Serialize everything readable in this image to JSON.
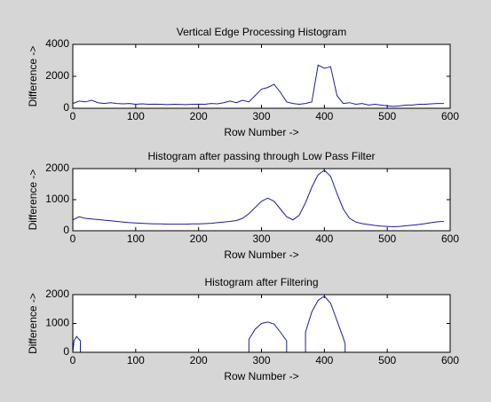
{
  "chart_data": [
    {
      "type": "line",
      "title": "Vertical Edge Processing Histogram",
      "xlabel": "Row Number ->",
      "ylabel": "Difference ->",
      "color": "#1c1ca0",
      "x": [
        0,
        10,
        20,
        30,
        40,
        50,
        60,
        70,
        80,
        90,
        100,
        110,
        120,
        130,
        140,
        150,
        160,
        170,
        180,
        190,
        200,
        210,
        220,
        230,
        240,
        250,
        260,
        270,
        280,
        290,
        300,
        310,
        320,
        330,
        340,
        350,
        360,
        370,
        380,
        390,
        400,
        410,
        420,
        430,
        440,
        450,
        460,
        470,
        480,
        490,
        500,
        510,
        520,
        530,
        540,
        550,
        560,
        570,
        580,
        590
      ],
      "values": [
        300,
        450,
        400,
        500,
        350,
        300,
        350,
        300,
        280,
        300,
        250,
        280,
        250,
        260,
        250,
        230,
        250,
        240,
        230,
        250,
        260,
        250,
        300,
        280,
        350,
        450,
        350,
        500,
        400,
        800,
        1200,
        1300,
        1500,
        1000,
        400,
        300,
        250,
        300,
        400,
        2700,
        2500,
        2600,
        800,
        300,
        350,
        250,
        300,
        200,
        250,
        200,
        150,
        120,
        150,
        200,
        200,
        250,
        250,
        280,
        300,
        300
      ],
      "xlim": [
        0,
        600
      ],
      "ylim": [
        0,
        4000
      ],
      "xticks": [
        0,
        100,
        200,
        300,
        400,
        500,
        600
      ],
      "yticks": [
        0,
        2000,
        4000
      ]
    },
    {
      "type": "line",
      "title": "Histogram after passing through Low Pass Filter",
      "xlabel": "Row Number ->",
      "ylabel": "Difference ->",
      "color": "#1c1ca0",
      "x": [
        0,
        10,
        20,
        30,
        40,
        50,
        60,
        70,
        80,
        90,
        100,
        110,
        120,
        130,
        140,
        150,
        160,
        170,
        180,
        190,
        200,
        210,
        220,
        230,
        240,
        250,
        260,
        270,
        280,
        290,
        300,
        310,
        320,
        330,
        340,
        350,
        360,
        370,
        380,
        390,
        400,
        410,
        420,
        430,
        440,
        450,
        460,
        470,
        480,
        490,
        500,
        510,
        520,
        530,
        540,
        550,
        560,
        570,
        580,
        590
      ],
      "values": [
        350,
        450,
        400,
        380,
        360,
        340,
        320,
        300,
        280,
        260,
        250,
        240,
        230,
        220,
        220,
        210,
        210,
        210,
        210,
        220,
        220,
        230,
        240,
        260,
        280,
        300,
        330,
        400,
        550,
        750,
        950,
        1050,
        950,
        700,
        450,
        350,
        500,
        900,
        1400,
        1800,
        1950,
        1750,
        1200,
        700,
        400,
        280,
        230,
        200,
        170,
        150,
        140,
        130,
        140,
        160,
        180,
        200,
        230,
        260,
        290,
        300
      ],
      "xlim": [
        0,
        600
      ],
      "ylim": [
        0,
        2000
      ],
      "xticks": [
        0,
        100,
        200,
        300,
        400,
        500,
        600
      ],
      "yticks": [
        0,
        1000,
        2000
      ]
    },
    {
      "type": "line",
      "title": "Histogram after Filtering",
      "xlabel": "Row Number ->",
      "ylabel": "Difference ->",
      "color": "#1c1ca0",
      "x": [
        0,
        2,
        6,
        10,
        12,
        12,
        280,
        280,
        290,
        300,
        310,
        320,
        330,
        340,
        340,
        370,
        370,
        380,
        390,
        400,
        410,
        420,
        430,
        433,
        433,
        590
      ],
      "values": [
        0,
        400,
        550,
        450,
        400,
        0,
        0,
        450,
        800,
        1000,
        1050,
        980,
        700,
        400,
        0,
        0,
        700,
        1400,
        1800,
        1950,
        1700,
        1100,
        500,
        300,
        0,
        0
      ],
      "xlim": [
        0,
        600
      ],
      "ylim": [
        0,
        2000
      ],
      "xticks": [
        0,
        100,
        200,
        300,
        400,
        500,
        600
      ],
      "yticks": [
        0,
        1000,
        2000
      ]
    }
  ]
}
